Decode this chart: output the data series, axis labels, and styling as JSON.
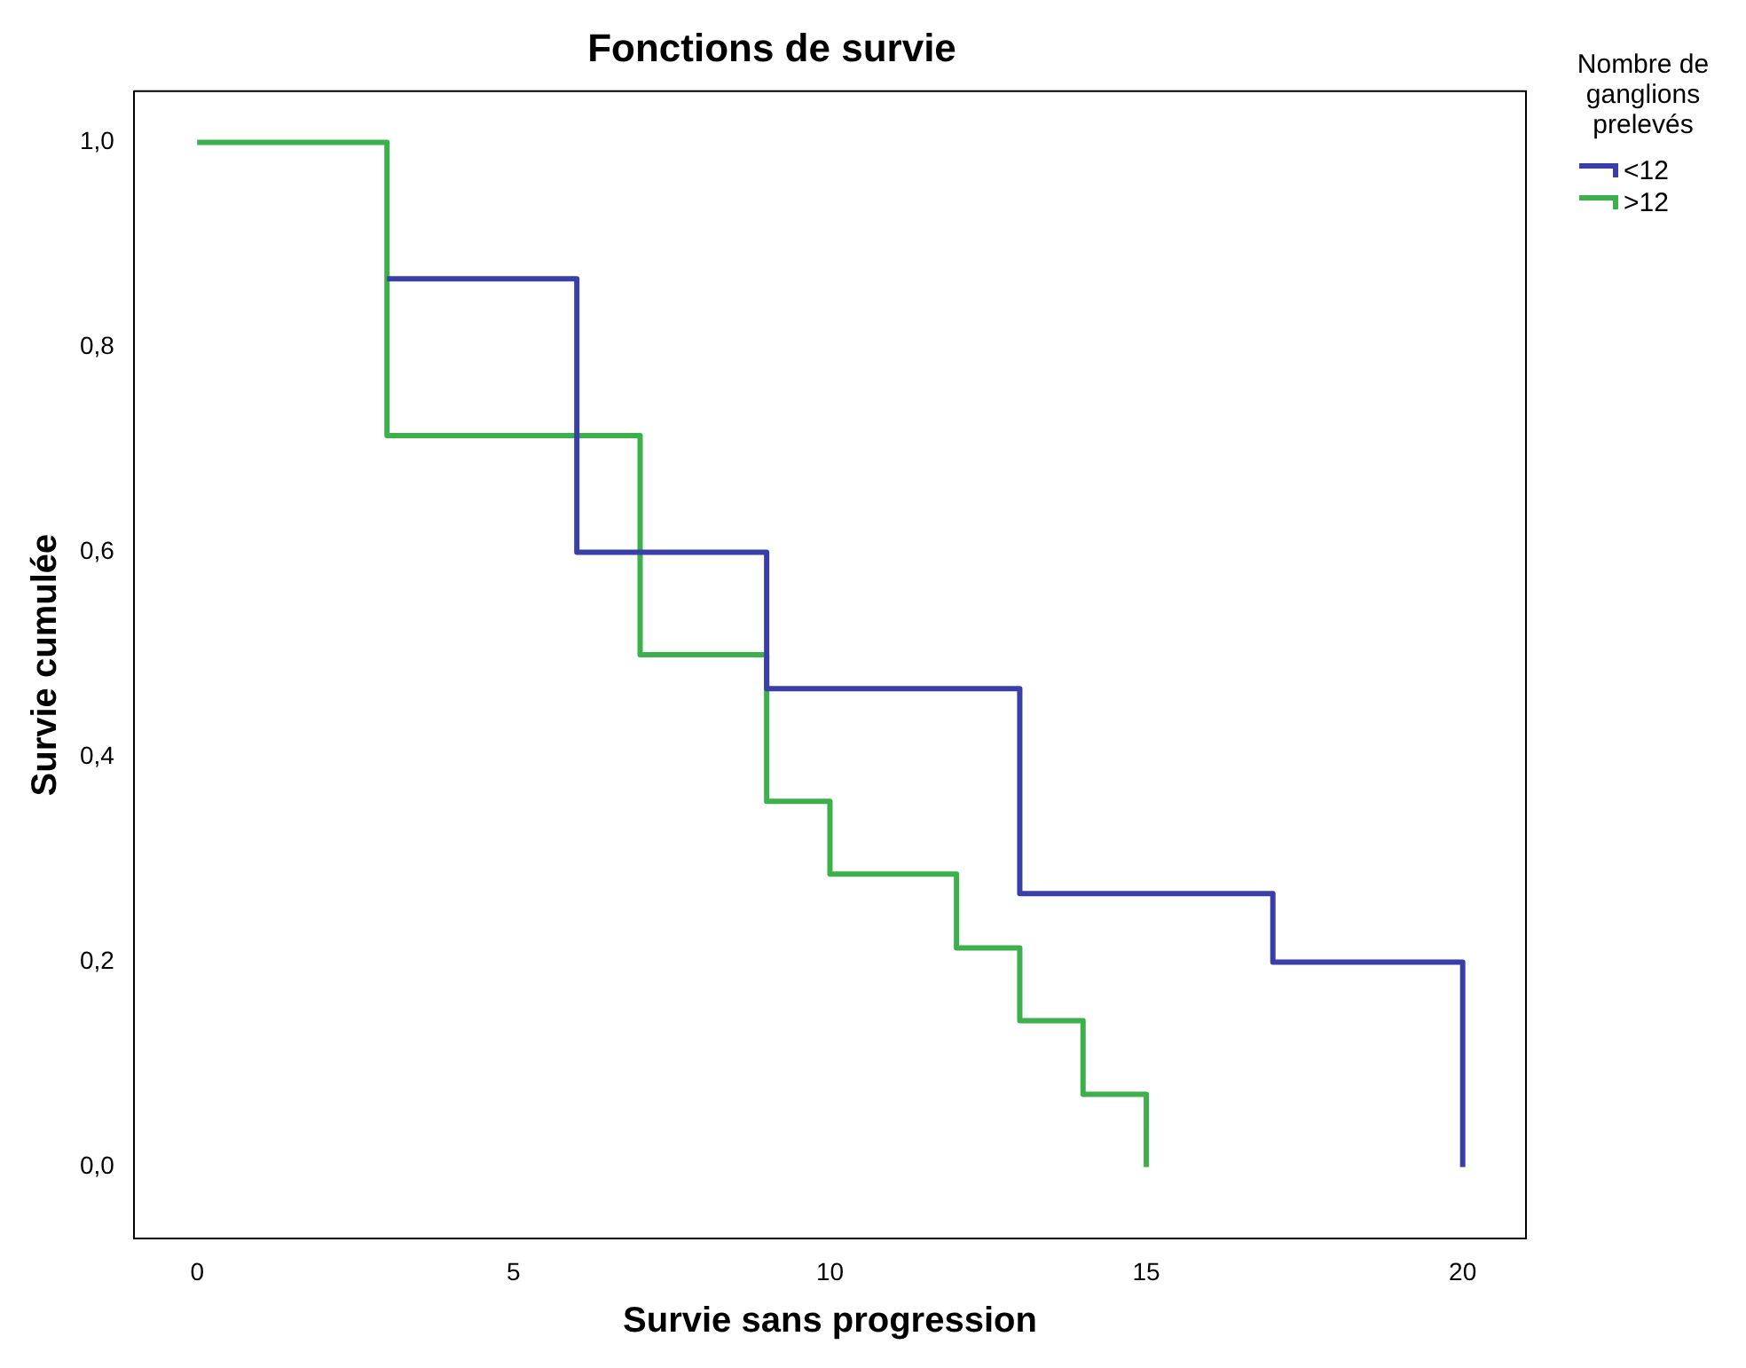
{
  "chart_data": {
    "type": "step",
    "title": "Fonctions de survie",
    "xlabel": "Survie sans progression",
    "ylabel": "Survie cumulée",
    "legend_title": "Nombre de ganglions prelevés",
    "legend": "right",
    "grid": false,
    "marker": "none",
    "line_style": "solid",
    "xlim": [
      -1,
      21
    ],
    "xticks": [
      0,
      5,
      10,
      15,
      20
    ],
    "ylim": [
      -0.07,
      1.05
    ],
    "yticks": [
      {
        "value": 0,
        "label": "0,0"
      },
      {
        "value": 0.2,
        "label": "0,2"
      },
      {
        "value": 0.4,
        "label": "0,4"
      },
      {
        "value": 0.6,
        "label": "0,6"
      },
      {
        "value": 0.8,
        "label": "0,8"
      },
      {
        "value": 1,
        "label": "1,0"
      }
    ],
    "series": [
      {
        "name": "<12",
        "color": "#3a3fa8",
        "x": [
          3,
          6,
          9,
          13,
          17,
          20
        ],
        "values": [
          0.867,
          0.6,
          0.467,
          0.267,
          0.2,
          0
        ]
      },
      {
        "name": ">12",
        "color": "#3cb04a",
        "x": [
          0,
          3,
          7,
          9,
          10,
          12,
          13,
          14,
          15
        ],
        "values": [
          1,
          0.714,
          0.5,
          0.357,
          0.286,
          0.214,
          0.143,
          0.071,
          0
        ]
      }
    ]
  }
}
